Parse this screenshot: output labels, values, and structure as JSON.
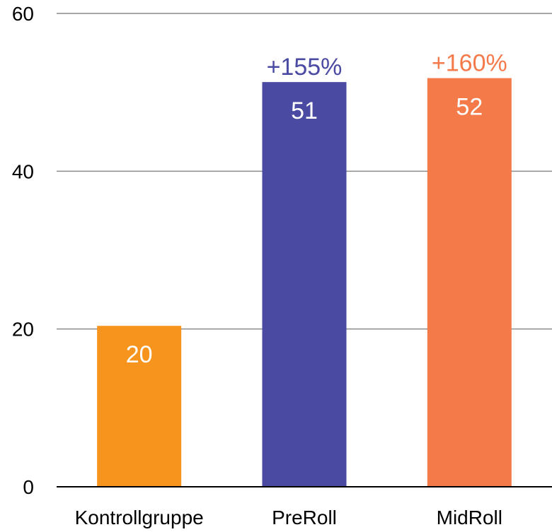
{
  "chart_data": {
    "type": "bar",
    "title": "",
    "xlabel": "",
    "ylabel": "",
    "categories": [
      "Kontrollgruppe",
      "PreRoll",
      "MidRoll"
    ],
    "values": [
      20.4,
      51.3,
      51.8
    ],
    "value_labels": [
      "20",
      "51",
      "52"
    ],
    "change_labels": [
      "",
      "+155%",
      "+160%"
    ],
    "colors": [
      "#f7941d",
      "#4a4aa3",
      "#f47a4a"
    ],
    "ylim": [
      0,
      60
    ],
    "yticks": [
      0,
      20,
      40,
      60
    ],
    "ytick_labels": [
      "0",
      "20",
      "40",
      "60"
    ],
    "grid": true,
    "legend": "none"
  }
}
